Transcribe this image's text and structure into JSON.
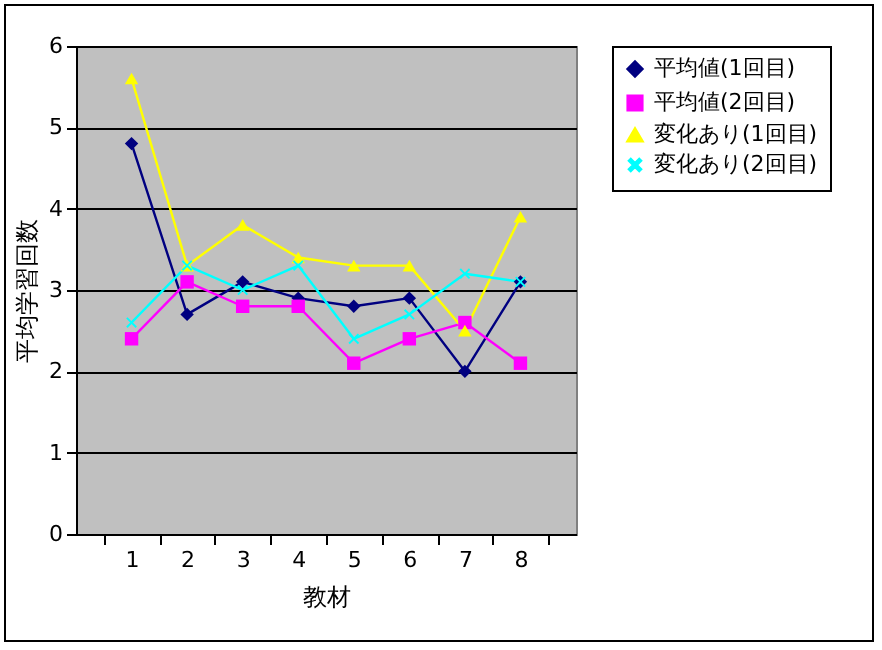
{
  "chart_data": {
    "type": "line",
    "xlabel": "教材",
    "ylabel": "平均学習回数",
    "categories": [
      "1",
      "2",
      "3",
      "4",
      "5",
      "6",
      "7",
      "8"
    ],
    "ylim": [
      0,
      6
    ],
    "yticks": [
      0,
      1,
      2,
      3,
      4,
      5,
      6
    ],
    "grid": "y",
    "legend": "right",
    "series": [
      {
        "name": "平均値(1回目)",
        "color": "#000080",
        "marker": "diamond",
        "values": [
          4.8,
          2.7,
          3.1,
          2.9,
          2.8,
          2.9,
          2.0,
          3.1
        ]
      },
      {
        "name": "平均値(2回目)",
        "color": "#ff00ff",
        "marker": "square",
        "values": [
          2.4,
          3.1,
          2.8,
          2.8,
          2.1,
          2.4,
          2.6,
          2.1
        ]
      },
      {
        "name": "変化あり(1回目)",
        "color": "#ffff00",
        "marker": "triangle",
        "values": [
          5.6,
          3.3,
          3.8,
          3.4,
          3.3,
          3.3,
          2.5,
          3.9
        ]
      },
      {
        "name": "変化あり(2回目)",
        "color": "#00ffff",
        "marker": "cross",
        "values": [
          2.6,
          3.3,
          3.0,
          3.3,
          2.4,
          2.7,
          3.2,
          3.1
        ]
      }
    ]
  }
}
